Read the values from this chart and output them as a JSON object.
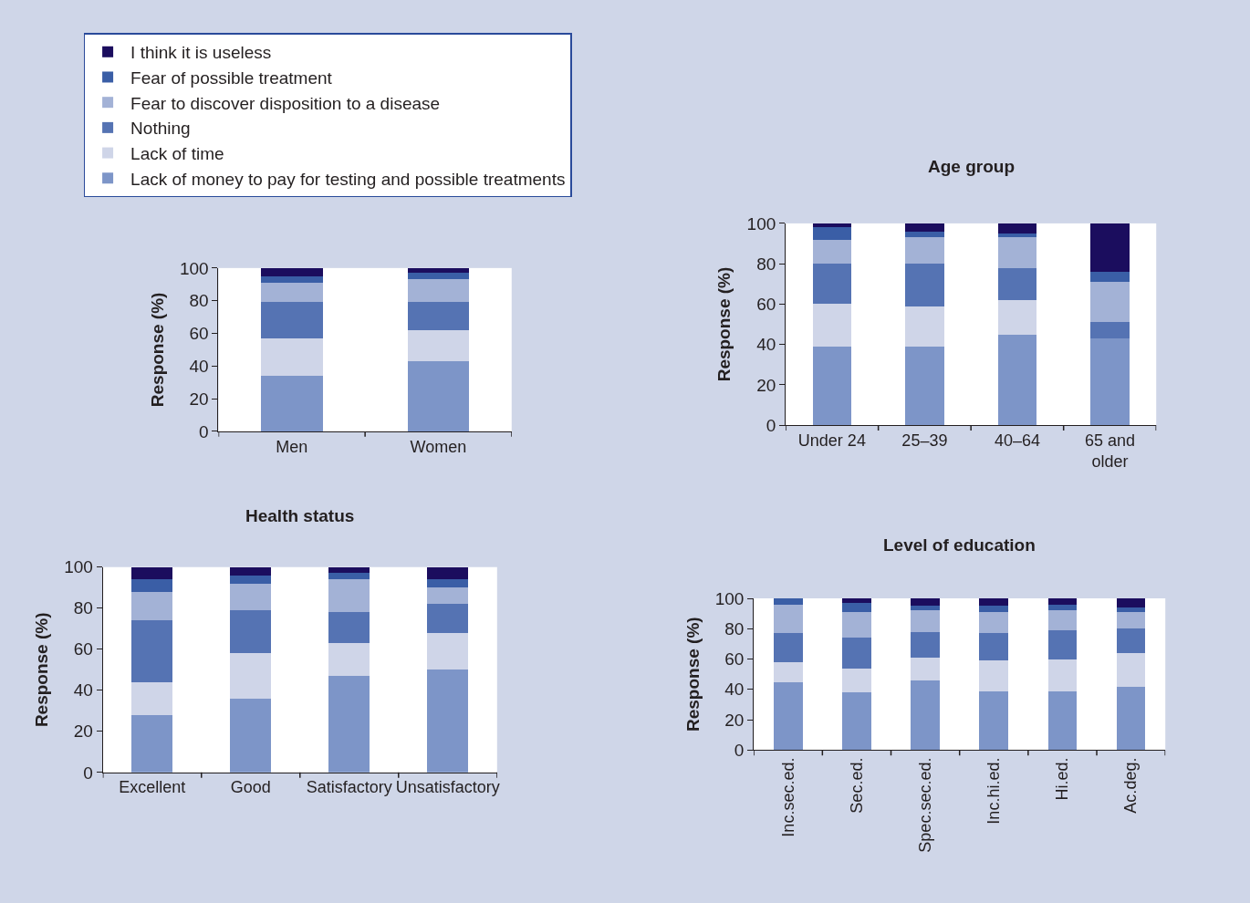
{
  "chart_data": [
    {
      "type": "bar",
      "stacked": true,
      "categories": [
        "Men",
        "Women"
      ],
      "ylabel": "Response (%)",
      "ylim": [
        0,
        100
      ],
      "yticks": [
        0,
        20,
        40,
        60,
        80,
        100
      ],
      "grid": false,
      "legend": "top left",
      "series": [
        {
          "name": "Lack of money to pay for testing and possible treatments",
          "color": "#7d95c8",
          "values": [
            34,
            43
          ]
        },
        {
          "name": "Lack of time",
          "color": "#cfd5e8",
          "values": [
            23,
            19
          ]
        },
        {
          "name": "Nothing",
          "color": "#5573b3",
          "values": [
            22,
            17
          ]
        },
        {
          "name": "Fear to discover disposition to a disease",
          "color": "#a3b2d6",
          "values": [
            12,
            14
          ]
        },
        {
          "name": "Fear of possible treatment",
          "color": "#3a5ea6",
          "values": [
            4,
            4
          ]
        },
        {
          "name": "I think it is useless",
          "color": "#1b0d5e",
          "values": [
            5,
            3
          ]
        }
      ]
    },
    {
      "type": "bar",
      "stacked": true,
      "title": "Age group",
      "categories": [
        "Under 24",
        "25–39",
        "40–64",
        "65 and older"
      ],
      "ylabel": "Response (%)",
      "ylim": [
        0,
        100
      ],
      "yticks": [
        0,
        20,
        40,
        60,
        80,
        100
      ],
      "grid": false,
      "series": [
        {
          "color": "#7d95c8",
          "values": [
            39,
            39,
            45,
            43
          ]
        },
        {
          "color": "#cfd5e8",
          "values": [
            21,
            20,
            17,
            0
          ]
        },
        {
          "color": "#5573b3",
          "values": [
            20,
            21,
            16,
            8
          ]
        },
        {
          "color": "#a3b2d6",
          "values": [
            12,
            13,
            15,
            20
          ]
        },
        {
          "color": "#3a5ea6",
          "values": [
            6,
            3,
            2,
            5
          ]
        },
        {
          "color": "#1b0d5e",
          "values": [
            2,
            4,
            5,
            24
          ]
        }
      ]
    },
    {
      "type": "bar",
      "stacked": true,
      "title": "Health status",
      "categories": [
        "Excellent",
        "Good",
        "Satisfactory",
        "Unsatisfactory"
      ],
      "ylabel": "Response (%)",
      "ylim": [
        0,
        100
      ],
      "yticks": [
        0,
        20,
        40,
        60,
        80,
        100
      ],
      "grid": false,
      "series": [
        {
          "color": "#7d95c8",
          "values": [
            28,
            36,
            47,
            50
          ]
        },
        {
          "color": "#cfd5e8",
          "values": [
            16,
            22,
            16,
            18
          ]
        },
        {
          "color": "#5573b3",
          "values": [
            30,
            21,
            15,
            14
          ]
        },
        {
          "color": "#a3b2d6",
          "values": [
            14,
            13,
            16,
            8
          ]
        },
        {
          "color": "#3a5ea6",
          "values": [
            6,
            4,
            3,
            4
          ]
        },
        {
          "color": "#1b0d5e",
          "values": [
            6,
            4,
            3,
            6
          ]
        }
      ]
    },
    {
      "type": "bar",
      "stacked": true,
      "title": "Level of education",
      "categories": [
        "Inc.sec.ed.",
        "Sec.ed.",
        "Spec.sec.ed.",
        "Inc.hi.ed.",
        "Hi.ed.",
        "Ac.deg."
      ],
      "ylabel": "Response (%)",
      "ylim": [
        0,
        100
      ],
      "yticks": [
        0,
        20,
        40,
        60,
        80,
        100
      ],
      "grid": false,
      "series": [
        {
          "color": "#7d95c8",
          "values": [
            45,
            38,
            46,
            39,
            39,
            42
          ]
        },
        {
          "color": "#cfd5e8",
          "values": [
            13,
            16,
            15,
            20,
            21,
            22
          ]
        },
        {
          "color": "#5573b3",
          "values": [
            19,
            20,
            17,
            18,
            19,
            16
          ]
        },
        {
          "color": "#a3b2d6",
          "values": [
            19,
            17,
            14,
            14,
            13,
            11
          ]
        },
        {
          "color": "#3a5ea6",
          "values": [
            4,
            6,
            3,
            4,
            4,
            3
          ]
        },
        {
          "color": "#1b0d5e",
          "values": [
            0,
            3,
            5,
            5,
            4,
            6
          ]
        }
      ]
    }
  ]
}
